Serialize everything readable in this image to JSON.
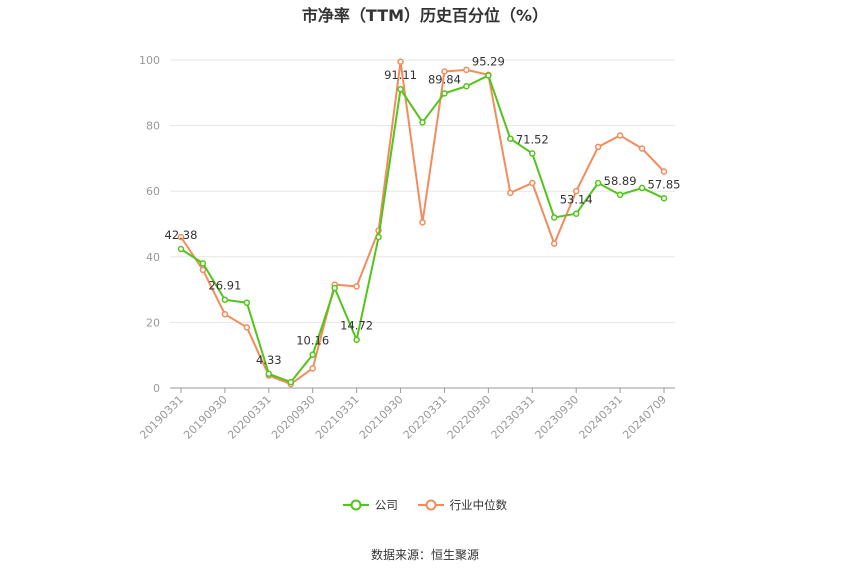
{
  "chart_data": {
    "type": "line",
    "title": "市净率（TTM）历史百分位（%）",
    "x": [
      "20190331",
      "20190630",
      "20190930",
      "20191231",
      "20200331",
      "20200630",
      "20200930",
      "20201231",
      "20210331",
      "20210630",
      "20210930",
      "20211231",
      "20220331",
      "20220630",
      "20220930",
      "20221231",
      "20230331",
      "20230630",
      "20230930",
      "20231231",
      "20240331",
      "20240630",
      "20240709"
    ],
    "x_tick_labels": [
      "20190331",
      "20190930",
      "20200331",
      "20200930",
      "20210331",
      "20210930",
      "20220331",
      "20220930",
      "20230331",
      "20230930",
      "20240331",
      "20240709"
    ],
    "ylim": [
      0,
      100
    ],
    "y_ticks": [
      0,
      20,
      40,
      60,
      80,
      100
    ],
    "grid": true,
    "series": [
      {
        "name": "公司",
        "color": "#52c41a",
        "values": [
          42.38,
          38.0,
          26.91,
          26.0,
          4.33,
          1.8,
          10.16,
          30.5,
          14.72,
          46.0,
          91.11,
          81.0,
          89.84,
          92.0,
          95.29,
          76.0,
          71.52,
          52.0,
          53.14,
          62.5,
          58.89,
          61.0,
          57.85
        ]
      },
      {
        "name": "行业中位数",
        "color": "#f28c5c",
        "values": [
          46.0,
          36.0,
          22.5,
          18.5,
          3.8,
          1.2,
          6.0,
          31.5,
          31.0,
          48.0,
          99.5,
          50.5,
          96.5,
          97.0,
          95.5,
          59.5,
          62.5,
          44.0,
          60.0,
          73.5,
          77.0,
          73.0,
          66.0
        ]
      }
    ],
    "data_labels": [
      {
        "series": 0,
        "index": 0,
        "text": "42.38"
      },
      {
        "series": 0,
        "index": 2,
        "text": "26.91"
      },
      {
        "series": 0,
        "index": 4,
        "text": "4.33"
      },
      {
        "series": 0,
        "index": 6,
        "text": "10.16"
      },
      {
        "series": 0,
        "index": 8,
        "text": "14.72"
      },
      {
        "series": 0,
        "index": 10,
        "text": "91.11"
      },
      {
        "series": 0,
        "index": 12,
        "text": "89.84"
      },
      {
        "series": 0,
        "index": 14,
        "text": "95.29"
      },
      {
        "series": 0,
        "index": 16,
        "text": "71.52"
      },
      {
        "series": 0,
        "index": 18,
        "text": "53.14"
      },
      {
        "series": 0,
        "index": 20,
        "text": "58.89"
      },
      {
        "series": 0,
        "index": 22,
        "text": "57.85"
      }
    ],
    "legend": [
      "公司",
      "行业中位数"
    ],
    "legend_position": "bottom"
  },
  "source": "数据来源：恒生聚源"
}
